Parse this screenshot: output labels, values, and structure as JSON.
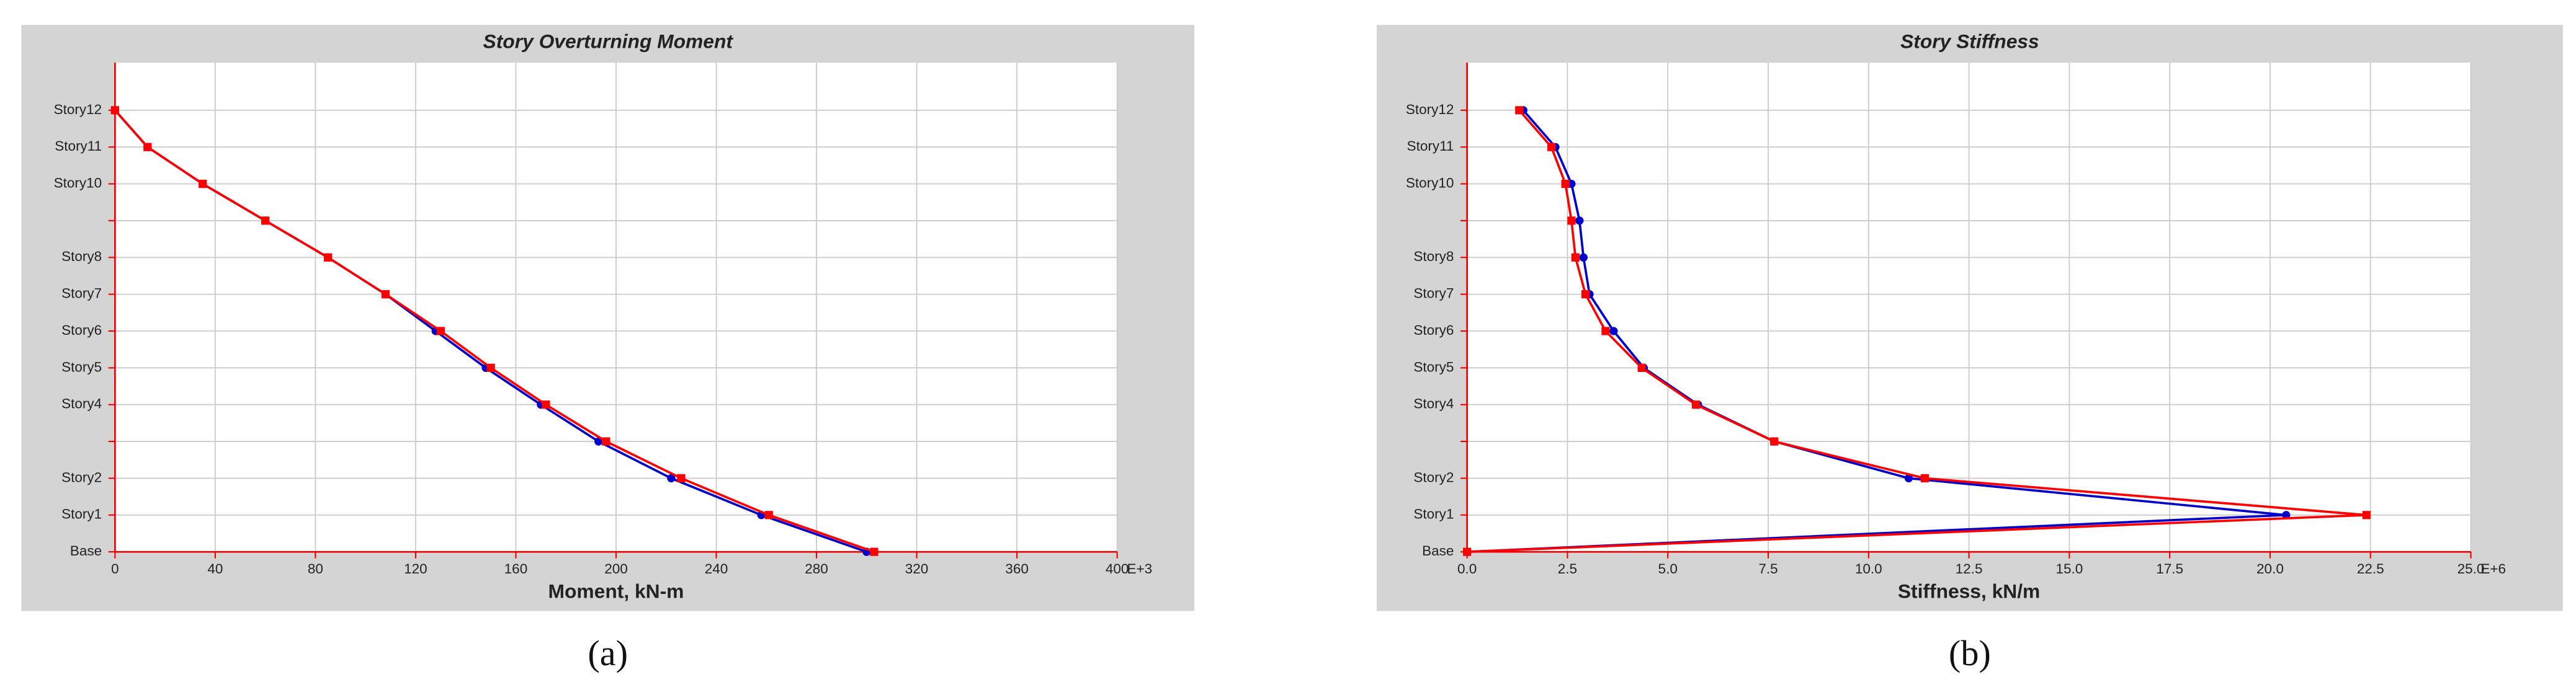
{
  "chart_data": [
    {
      "type": "line",
      "orientation": "horizontal",
      "title": "Story Overturning Moment",
      "x_label": "Moment, kN-m",
      "x_exponent": "E+3",
      "caption": "(a)",
      "categories": [
        "Base",
        "Story1",
        "Story2",
        null,
        "Story4",
        "Story5",
        "Story6",
        "Story7",
        "Story8",
        null,
        "Story10",
        "Story11",
        "Story12"
      ],
      "xlim": [
        0,
        400
      ],
      "xticks": [
        0,
        40,
        80,
        120,
        160,
        200,
        240,
        280,
        320,
        360,
        400
      ],
      "grid": true,
      "series": [
        {
          "color": "#0000cc",
          "marker": "circle",
          "values": [
            300,
            258,
            222,
            193,
            170,
            148,
            128,
            108,
            85,
            60,
            35,
            13,
            0
          ]
        },
        {
          "color": "#ff0000",
          "marker": "square",
          "values": [
            303,
            261,
            226,
            196,
            172,
            150,
            130,
            108,
            85,
            60,
            35,
            13,
            0
          ]
        }
      ]
    },
    {
      "type": "line",
      "orientation": "horizontal",
      "title": "Story Stiffness",
      "x_label": "Stiffness, kN/m",
      "x_exponent": "E+6",
      "caption": "(b)",
      "categories": [
        "Base",
        "Story1",
        "Story2",
        null,
        "Story4",
        "Story5",
        "Story6",
        "Story7",
        "Story8",
        null,
        "Story10",
        "Story11",
        "Story12"
      ],
      "xlim": [
        0,
        25
      ],
      "xticks": [
        {
          "value": 0,
          "label": "0.0"
        },
        2.5,
        {
          "value": 5,
          "label": "5.0"
        },
        7.5,
        {
          "value": 10,
          "label": "10.0"
        },
        12.5,
        {
          "value": 15,
          "label": "15.0"
        },
        17.5,
        {
          "value": 20,
          "label": "20.0"
        },
        22.5,
        {
          "value": 25,
          "label": "25.0"
        }
      ],
      "grid": true,
      "series": [
        {
          "color": "#0000cc",
          "marker": "circle",
          "values": [
            0,
            20.4,
            11.0,
            7.65,
            5.75,
            4.4,
            3.65,
            3.05,
            2.9,
            2.8,
            2.6,
            2.2,
            1.4
          ]
        },
        {
          "color": "#ff0000",
          "marker": "square",
          "values": [
            0,
            22.4,
            11.4,
            7.65,
            5.7,
            4.35,
            3.45,
            2.95,
            2.7,
            2.6,
            2.45,
            2.1,
            1.3
          ]
        }
      ]
    }
  ]
}
